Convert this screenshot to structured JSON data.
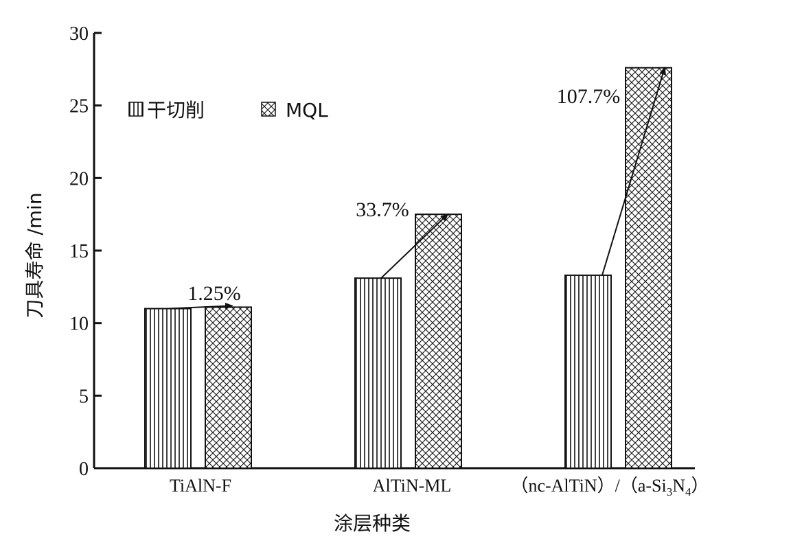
{
  "chart_data": {
    "type": "bar",
    "categories": [
      "TiAlN-F",
      "AlTiN-ML",
      "（nc-AlTiN）/（a-Si3N4）"
    ],
    "series": [
      {
        "name": "干切削",
        "values": [
          11.0,
          13.1,
          13.3
        ],
        "pattern": "vertical-stripes"
      },
      {
        "name": "MQL",
        "values": [
          11.1,
          17.5,
          27.6
        ],
        "pattern": "crosshatch"
      }
    ],
    "annotations": [
      "1.25%",
      "33.7%",
      "107.7%"
    ],
    "xlabel": "涂层种类",
    "ylabel": "刀具寿命 /min",
    "ylim": [
      0,
      30
    ],
    "yticks": [
      0,
      5,
      10,
      15,
      20,
      25,
      30
    ],
    "grid": false,
    "legend_position": "top-left",
    "colors": {
      "bar_fill": "#ffffff",
      "pattern_stroke": "#111111",
      "axis": "#111111"
    }
  }
}
